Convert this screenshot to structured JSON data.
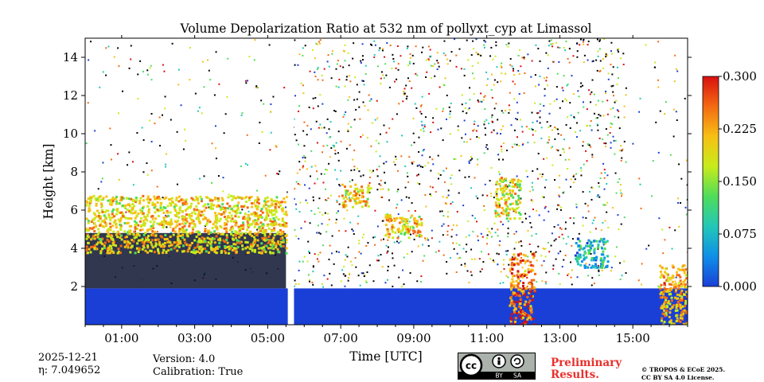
{
  "chart_data": {
    "type": "heatmap",
    "title": "Volume Depolarization Ratio at 532 nm of pollyxt_cyp at Limassol",
    "xlabel": "Time [UTC]",
    "ylabel": "Height [km]",
    "xlim": [
      0,
      16.5
    ],
    "ylim": [
      0,
      15
    ],
    "xticks": [
      1,
      3,
      5,
      7,
      9,
      11,
      13,
      15
    ],
    "xtick_labels": [
      "01:00",
      "03:00",
      "05:00",
      "07:00",
      "09:00",
      "11:00",
      "13:00",
      "15:00"
    ],
    "yticks": [
      2,
      4,
      6,
      8,
      10,
      12,
      14
    ],
    "ytick_labels": [
      "2",
      "4",
      "6",
      "8",
      "10",
      "12",
      "14"
    ],
    "colorbar": {
      "range": [
        0.0,
        0.3
      ],
      "ticks": [
        0.0,
        0.075,
        0.15,
        0.225,
        0.3
      ],
      "tick_labels": [
        "0.000",
        "0.075",
        "0.150",
        "0.225",
        "0.300"
      ],
      "colors": [
        "#1a3fd6",
        "#0f8fe8",
        "#22c7b8",
        "#4fdc5a",
        "#c7ec1a",
        "#f7c014",
        "#f46a12",
        "#d81010"
      ]
    },
    "data_gaps": [
      [
        5.55,
        5.72
      ]
    ],
    "layers": [
      {
        "name": "boundary-layer",
        "start": 0,
        "end": 16.5,
        "base": 0,
        "top": 1.9,
        "depol": 0.02
      },
      {
        "name": "dust-layer-early",
        "start": 0,
        "end": 5.5,
        "base": 3.8,
        "top": 6.8,
        "depol": 0.2
      },
      {
        "name": "cloud-07h",
        "start": 7.0,
        "end": 7.8,
        "base": 6.2,
        "top": 7.4,
        "depol": 0.2
      },
      {
        "name": "cloud-09h",
        "start": 8.2,
        "end": 9.2,
        "base": 4.6,
        "top": 5.8,
        "depol": 0.2
      },
      {
        "name": "cloud-1130",
        "start": 11.2,
        "end": 11.9,
        "base": 5.6,
        "top": 7.8,
        "depol": 0.19
      },
      {
        "name": "plume-12h",
        "start": 11.6,
        "end": 12.3,
        "base": 0,
        "top": 3.8,
        "depol": 0.25
      },
      {
        "name": "layer-1330",
        "start": 13.4,
        "end": 14.3,
        "base": 3.0,
        "top": 4.6,
        "depol": 0.07
      },
      {
        "name": "plume-16h",
        "start": 15.7,
        "end": 16.5,
        "base": 0,
        "top": 3.2,
        "depol": 0.22
      }
    ]
  },
  "meta": {
    "date": "2025-12-21",
    "eta": "η: 7.049652",
    "version": "Version: 4.0",
    "calibration": "Calibration: True",
    "preliminary": [
      "Preliminary",
      "Results."
    ],
    "copyright": [
      "© TROPOS & ECoE 2025.",
      "CC BY SA 4.0 License."
    ],
    "license_badge": [
      "BY",
      "SA"
    ]
  }
}
